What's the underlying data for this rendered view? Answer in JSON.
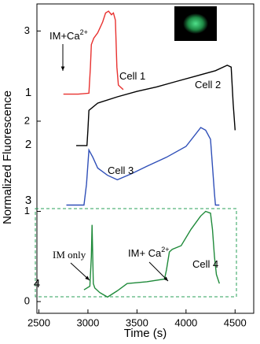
{
  "chart_data": {
    "type": "line",
    "xlabel": "Time (s)",
    "ylabel": "Normalized Fluorescence",
    "xlim": [
      2480,
      4690
    ],
    "ylim": [
      -0.13,
      3.3
    ],
    "xticks": [
      2500,
      3000,
      3500,
      4000,
      4500
    ],
    "yticks": [
      0,
      1,
      2,
      3
    ],
    "series": [
      {
        "name": "Cell 1",
        "color": "#e8312f",
        "x": [
          2750,
          2900,
          3010,
          3025,
          3035,
          3060,
          3100,
          3150,
          3180,
          3210,
          3240,
          3260,
          3280,
          3295,
          3310,
          3360
        ],
        "values": [
          2.3,
          2.3,
          2.31,
          2.6,
          2.85,
          2.92,
          2.98,
          3.1,
          3.2,
          3.22,
          3.18,
          3.2,
          3.12,
          2.6,
          2.4,
          2.35
        ]
      },
      {
        "name": "Cell 2",
        "color": "#000000",
        "x": [
          2880,
          2990,
          3000,
          3010,
          3100,
          3300,
          3500,
          3700,
          3900,
          4100,
          4300,
          4420,
          4460,
          4480,
          4500
        ],
        "values": [
          1.73,
          1.73,
          1.9,
          2.12,
          2.2,
          2.27,
          2.33,
          2.38,
          2.44,
          2.5,
          2.56,
          2.62,
          2.6,
          2.2,
          1.9
        ]
      },
      {
        "name": "Cell 3",
        "color": "#2f4fb8",
        "x": [
          2780,
          2960,
          2985,
          3010,
          3050,
          3100,
          3200,
          3300,
          3450,
          3600,
          3800,
          4000,
          4150,
          4200,
          4250,
          4270,
          4290,
          4300,
          4340
        ],
        "values": [
          1.07,
          1.07,
          1.3,
          1.68,
          1.6,
          1.48,
          1.4,
          1.35,
          1.42,
          1.5,
          1.6,
          1.72,
          1.93,
          1.9,
          1.8,
          1.5,
          1.2,
          1.07,
          1.07
        ]
      },
      {
        "name": "Cell 4",
        "color": "#1f8a3a",
        "x": [
          2960,
          3020,
          3035,
          3042,
          3055,
          3070,
          3120,
          3200,
          3300,
          3400,
          3600,
          3780,
          3800,
          3830,
          3860,
          3950,
          4050,
          4150,
          4200,
          4250,
          4270,
          4290,
          4310,
          4340
        ],
        "values": [
          0.13,
          0.17,
          0.5,
          0.85,
          0.2,
          0.15,
          0.1,
          0.05,
          0.12,
          0.2,
          0.22,
          0.25,
          0.35,
          0.55,
          0.58,
          0.62,
          0.8,
          0.95,
          1.0,
          0.98,
          0.8,
          0.5,
          0.3,
          0.2
        ]
      }
    ],
    "annotations": [
      {
        "text": "IM+Ca",
        "sup": "2+"
      },
      {
        "text": "Cell 1"
      },
      {
        "text": "Cell 2"
      },
      {
        "text": "Cell 3"
      },
      {
        "text": "IM only"
      },
      {
        "text": "IM+ Ca",
        "sup": "2+"
      },
      {
        "text": "Cell 4"
      },
      {
        "text": "1"
      },
      {
        "text": "2"
      },
      {
        "text": "3"
      },
      {
        "text": "4"
      }
    ]
  }
}
